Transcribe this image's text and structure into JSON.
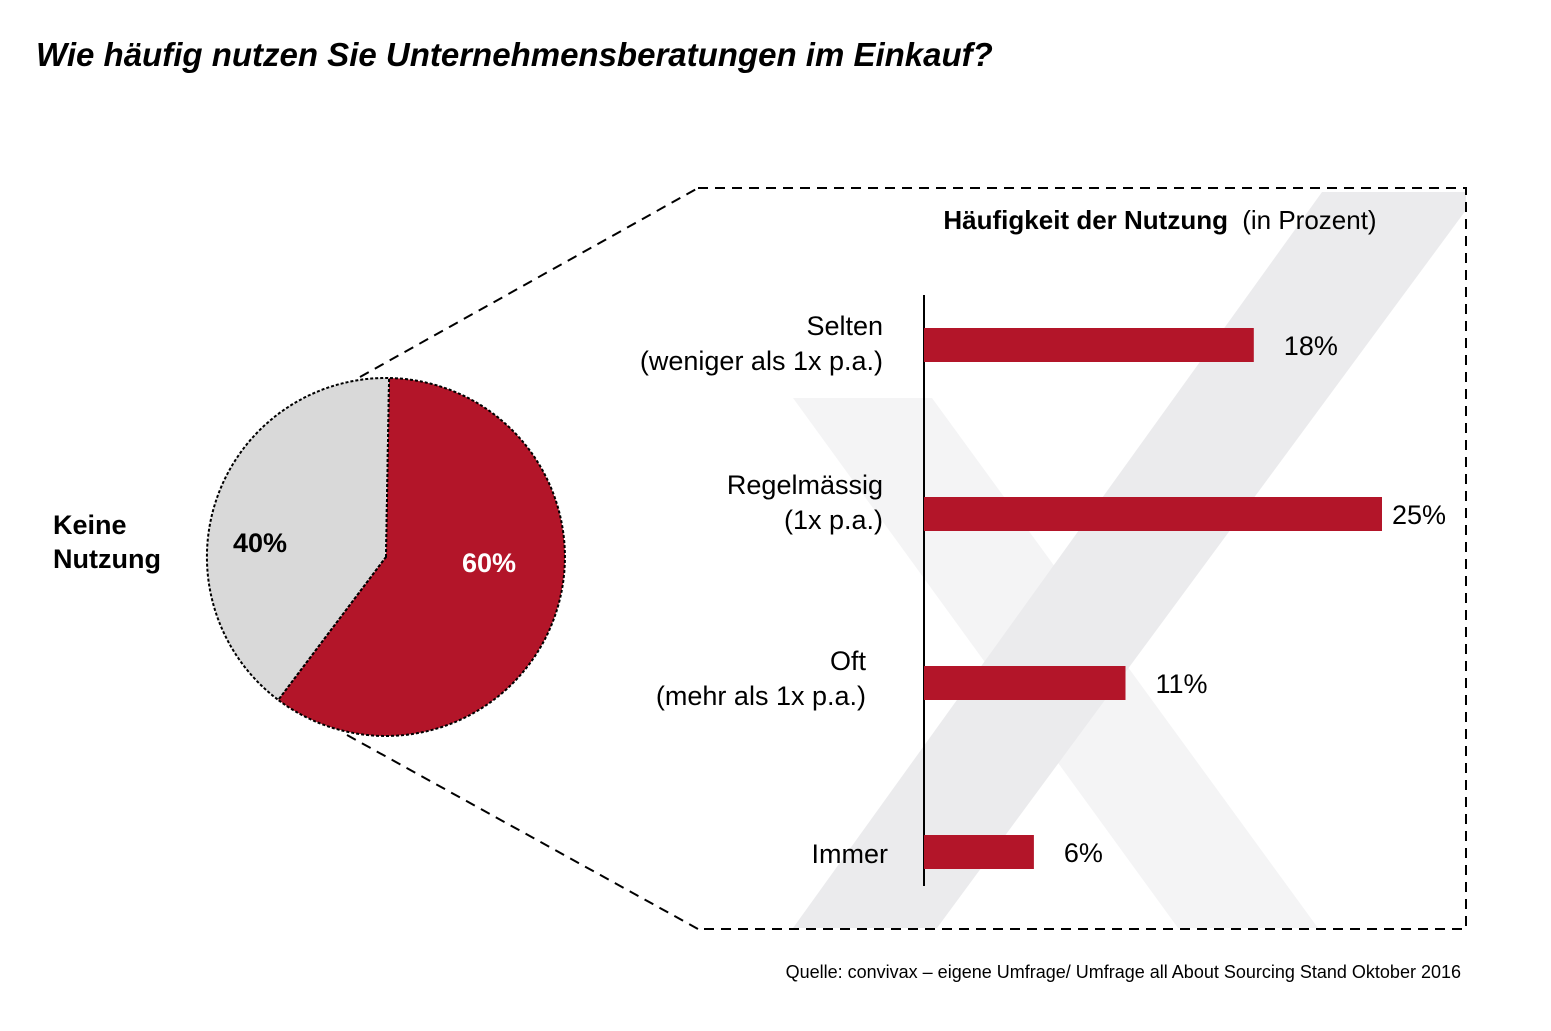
{
  "title": "Wie häufig nutzen Sie Unternehmensberatungen im Einkauf?",
  "source": "Quelle: convivax – eigene Umfrage/ Umfrage all About Sourcing Stand Oktober 2016",
  "colors": {
    "accent": "#b31529",
    "neutral": "#d9d9d9",
    "watermark": "#ebebed",
    "watermark_light": "#f4f4f5"
  },
  "chart_data": [
    {
      "type": "pie",
      "slices": [
        {
          "label": "Keine Nutzung",
          "value": 40,
          "value_label": "40%",
          "color": "#d9d9d9"
        },
        {
          "label": "",
          "value": 60,
          "value_label": "60%",
          "color": "#b31529"
        }
      ],
      "outside_label_lines": [
        "Keine",
        "Nutzung"
      ]
    },
    {
      "type": "bar",
      "orientation": "horizontal",
      "title_bold": "Häufigkeit der Nutzung",
      "title_regular": "(in Prozent)",
      "categories": [
        [
          "Selten",
          "(weniger als 1x p.a.)"
        ],
        [
          "Regelmässig",
          "(1x p.a.)"
        ],
        [
          "Oft",
          "(mehr als 1x p.a.)"
        ],
        [
          "Immer"
        ]
      ],
      "values": [
        18,
        25,
        11,
        6
      ],
      "value_labels": [
        "18%",
        "25%",
        "11%",
        "6%"
      ],
      "color": "#b31529",
      "grid": false
    }
  ]
}
